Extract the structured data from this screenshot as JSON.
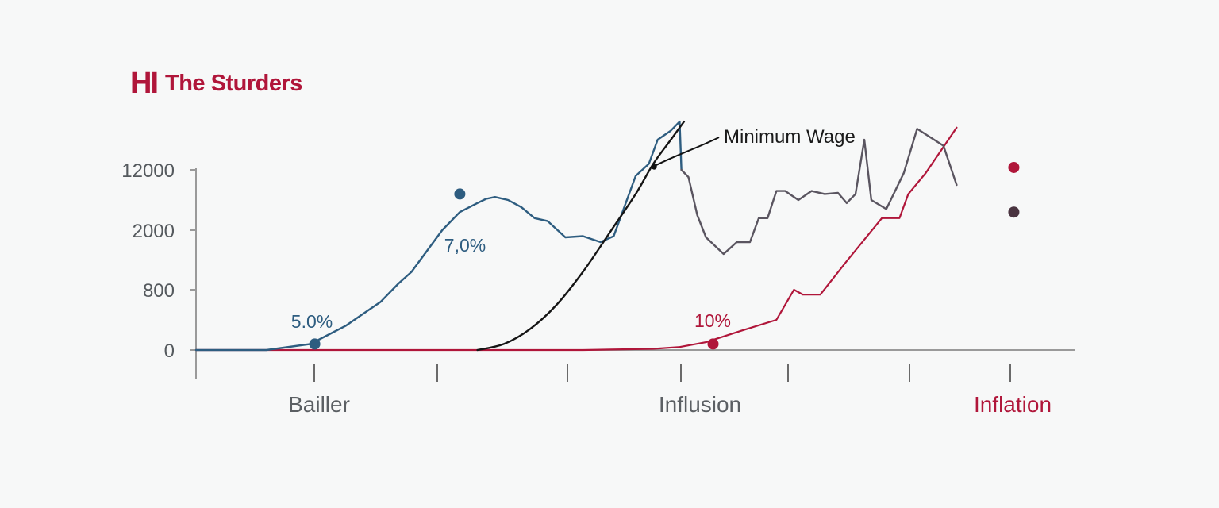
{
  "header": {
    "logo_text": "HI",
    "title": "The Sturders"
  },
  "colors": {
    "brand": "#b0163a",
    "blue": "#2e5d80",
    "dark": "#5a5560",
    "black": "#151515",
    "red": "#b0163a",
    "axis": "#9a9a9a",
    "category_gray": "#5b5f63"
  },
  "chart_data": {
    "type": "line",
    "title": "",
    "ylabel": "",
    "xlabel": "",
    "y_ticks": [
      "12000",
      "2000",
      "800",
      "0"
    ],
    "x_categories": [
      "Bailler",
      "Influsion",
      "Inflation"
    ],
    "x_range": [
      0,
      100
    ],
    "annotations": [
      "5.0%",
      "7,0%",
      "10%"
    ],
    "callout": "Minimum Wage",
    "series": [
      {
        "name": "",
        "color": "blue",
        "points": [
          [
            0,
            0
          ],
          [
            8,
            0
          ],
          [
            13,
            0.1
          ],
          [
            15,
            0.25
          ],
          [
            17,
            0.4
          ],
          [
            19,
            0.6
          ],
          [
            21,
            0.8
          ],
          [
            23,
            1.1
          ],
          [
            24.5,
            1.3
          ],
          [
            26,
            1.6
          ],
          [
            28,
            2.0
          ],
          [
            30,
            2.3
          ],
          [
            32,
            2.45
          ],
          [
            33,
            2.52
          ],
          [
            34,
            2.55
          ],
          [
            35.5,
            2.5
          ],
          [
            37,
            2.38
          ],
          [
            38.5,
            2.2
          ],
          [
            40,
            2.15
          ],
          [
            42,
            1.88
          ],
          [
            44,
            1.9
          ],
          [
            46,
            1.8
          ],
          [
            47.5,
            1.9
          ],
          [
            50,
            2.9
          ],
          [
            51.5,
            3.1
          ],
          [
            52.5,
            3.5
          ],
          [
            54,
            3.65
          ],
          [
            55,
            3.8
          ],
          [
            55.2,
            3.0
          ]
        ]
      },
      {
        "name": "",
        "color": "dark",
        "points": [
          [
            55.2,
            3.0
          ],
          [
            56,
            2.88
          ],
          [
            57,
            2.25
          ],
          [
            58,
            1.88
          ],
          [
            60,
            1.6
          ],
          [
            61.5,
            1.8
          ],
          [
            63,
            1.8
          ],
          [
            64,
            2.2
          ],
          [
            65,
            2.2
          ],
          [
            66,
            2.65
          ],
          [
            67,
            2.65
          ],
          [
            68.5,
            2.5
          ],
          [
            70,
            2.65
          ],
          [
            71.5,
            2.6
          ],
          [
            73,
            2.62
          ],
          [
            74,
            2.45
          ],
          [
            75,
            2.6
          ],
          [
            76,
            3.5
          ],
          [
            76.8,
            2.5
          ],
          [
            78.5,
            2.35
          ],
          [
            80.5,
            2.95
          ],
          [
            82,
            3.68
          ],
          [
            85,
            3.4
          ],
          [
            86.5,
            2.75
          ]
        ]
      },
      {
        "name": "Minimum Wage",
        "color": "black",
        "points": [
          [
            32,
            0
          ],
          [
            35,
            0.1
          ],
          [
            38,
            0.35
          ],
          [
            41,
            0.75
          ],
          [
            44,
            1.3
          ],
          [
            47,
            1.95
          ],
          [
            50,
            2.6
          ],
          [
            52,
            3.1
          ],
          [
            54,
            3.5
          ],
          [
            55.5,
            3.8
          ]
        ]
      },
      {
        "name": "",
        "color": "red",
        "points": [
          [
            0,
            0
          ],
          [
            44,
            0
          ],
          [
            52,
            0.02
          ],
          [
            55,
            0.05
          ],
          [
            58,
            0.13
          ],
          [
            62,
            0.32
          ],
          [
            66,
            0.5
          ],
          [
            68,
            1.0
          ],
          [
            69,
            0.92
          ],
          [
            71,
            0.92
          ],
          [
            74,
            1.48
          ],
          [
            78,
            2.2
          ],
          [
            80,
            2.2
          ],
          [
            81,
            2.6
          ],
          [
            83,
            2.95
          ],
          [
            86.5,
            3.7
          ]
        ]
      }
    ]
  }
}
